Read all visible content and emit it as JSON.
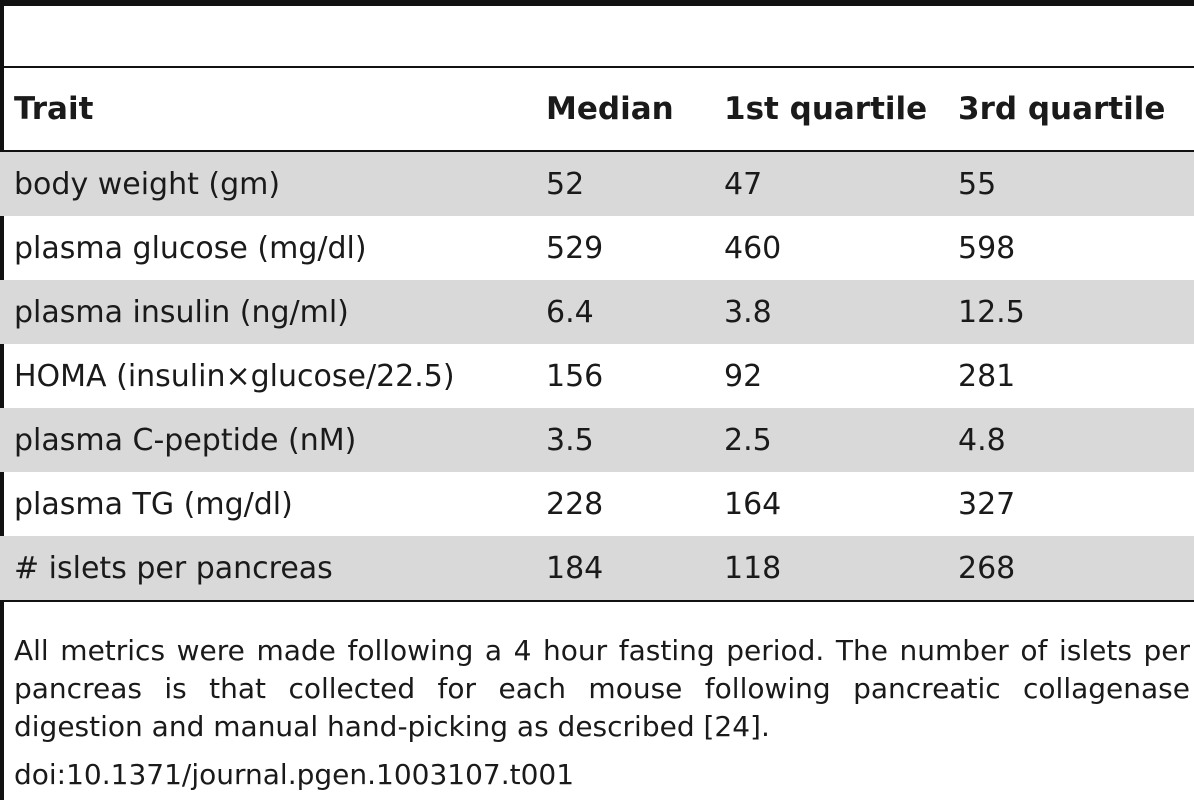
{
  "table": {
    "headers": [
      "Trait",
      "Median",
      "1st quartile",
      "3rd quartile"
    ],
    "rows": [
      [
        "body weight (gm)",
        "52",
        "47",
        "55"
      ],
      [
        "plasma glucose (mg/dl)",
        "529",
        "460",
        "598"
      ],
      [
        "plasma insulin (ng/ml)",
        "6.4",
        "3.8",
        "12.5"
      ],
      [
        "HOMA (insulin×glucose/22.5)",
        "156",
        "92",
        "281"
      ],
      [
        "plasma C-peptide (nM)",
        "3.5",
        "2.5",
        "4.8"
      ],
      [
        "plasma TG (mg/dl)",
        "228",
        "164",
        "327"
      ],
      [
        "# islets per pancreas",
        "184",
        "118",
        "268"
      ]
    ],
    "shaded_rows": [
      0,
      2,
      4,
      6
    ]
  },
  "footnote": {
    "text": "All metrics were made following a 4 hour fasting period. The number of islets per pancreas is that collected for each mouse following pancreatic collagenase digestion and manual hand-picking as described [24].",
    "doi": "doi:10.1371/journal.pgen.1003107.t001"
  },
  "colors": {
    "rule": "#111111",
    "shade": "#d9d9d9",
    "text": "#1a1a1a"
  }
}
